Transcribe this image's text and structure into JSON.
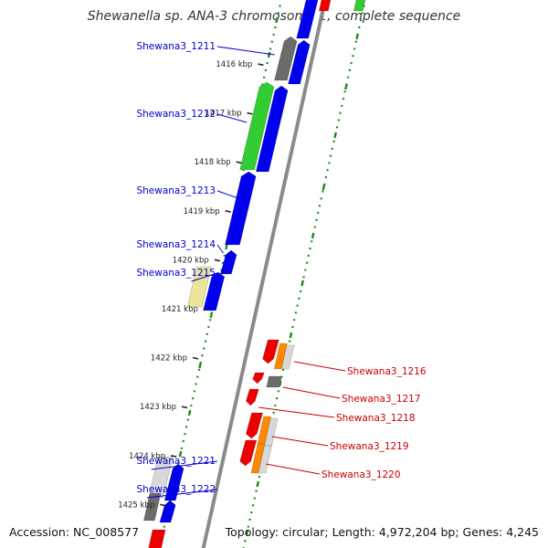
{
  "title": "Shewanella sp. ANA-3 chromosome 1, complete sequence",
  "footer": {
    "accession": "Accession: NC_008577",
    "summary": "Topology: circular; Length: 4,972,204 bp; Genes: 4,245"
  },
  "colors": {
    "backbone": "#8a8a8a",
    "tick": "#222222",
    "dotted_track": "#1e8a1e",
    "dotted_mark": "#1e8a1e",
    "label_forward": "#0000cc",
    "label_reverse": "#cc0000",
    "gene_blue": "#0000ee",
    "gene_gray": "#6b6b6b",
    "gene_green": "#33cc33",
    "gene_tan": "#ece49a",
    "gene_red": "#ee0000",
    "gene_orange": "#ff8800",
    "gene_light": "#d8d8d8"
  },
  "ticks": [
    {
      "label": "1416 kbp"
    },
    {
      "label": "1417 kbp"
    },
    {
      "label": "1418 kbp"
    },
    {
      "label": "1419 kbp"
    },
    {
      "label": "1420 kbp"
    },
    {
      "label": "1421 kbp"
    },
    {
      "label": "1422 kbp"
    },
    {
      "label": "1423 kbp"
    },
    {
      "label": "1424 kbp"
    },
    {
      "label": "1425 kbp"
    }
  ],
  "genes_forward": [
    {
      "name": "Shewana3_1211"
    },
    {
      "name": "Shewana3_1212"
    },
    {
      "name": "Shewana3_1213"
    },
    {
      "name": "Shewana3_1214"
    },
    {
      "name": "Shewana3_1215"
    },
    {
      "name": "Shewana3_1221"
    },
    {
      "name": "Shewana3_1222"
    }
  ],
  "genes_reverse": [
    {
      "name": "Shewana3_1216"
    },
    {
      "name": "Shewana3_1217"
    },
    {
      "name": "Shewana3_1218"
    },
    {
      "name": "Shewana3_1219"
    },
    {
      "name": "Shewana3_1220"
    }
  ]
}
